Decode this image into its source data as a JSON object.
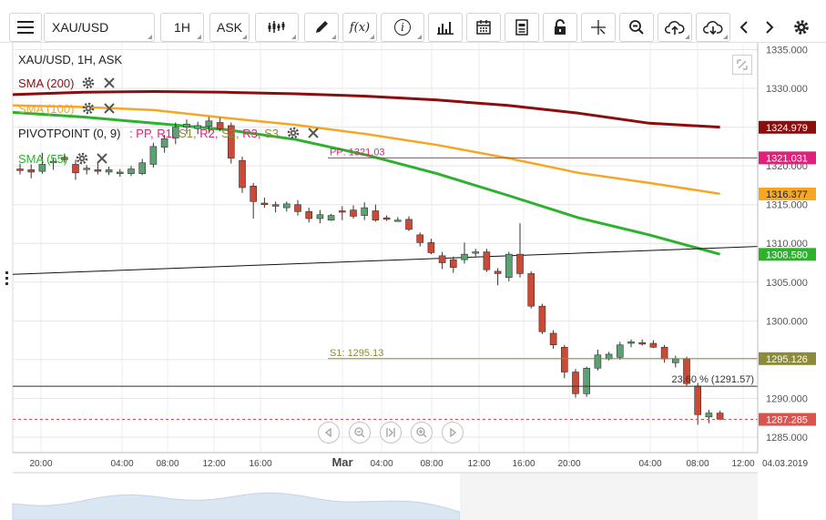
{
  "toolbar": {
    "symbol": "XAU/USD",
    "timeframe": "1H",
    "price_type": "ASK",
    "fx_label": "f(x)",
    "info_label": "i"
  },
  "legend": {
    "title": "XAU/USD, 1H, ASK",
    "sma200": "SMA (200)",
    "sma100": "SMA (100)",
    "pivot": "PIVOTPOINT (0, 9)",
    "pivot_tags": [
      ": PP,",
      "R1,",
      "S1,",
      "R2,",
      "S2,",
      "R3,",
      "S3"
    ],
    "sma55": "SMA (55)"
  },
  "colors": {
    "up": "#5aa272",
    "down": "#cc4a35",
    "sma200": "#8b0d0d",
    "sma100": "#f5a623",
    "sma55": "#2db22d",
    "pivot_pp": "#e0207a",
    "pivot_s1": "#8b8b3a",
    "current": "#d9534f",
    "trendline": "#111111",
    "fib": "#333333"
  },
  "annotations": {
    "pp_label": "PP: 1321.03",
    "s1_label": "S1: 1295.13",
    "fib_label": "23.60 % (1291.57)"
  },
  "price_axis_ticks": [
    "1335.000",
    "1330.000",
    "1325.000",
    "1320.000",
    "1315.000",
    "1310.000",
    "1305.000",
    "1300.000",
    "1295.000",
    "1290.000",
    "1285.000"
  ],
  "price_badges": [
    {
      "value": "1324.979",
      "key": "sma200"
    },
    {
      "value": "1321.031",
      "key": "pivot_pp"
    },
    {
      "value": "1316.377",
      "key": "sma100"
    },
    {
      "value": "1308.580",
      "key": "sma55"
    },
    {
      "value": "1295.126",
      "key": "pivot_s1"
    },
    {
      "value": "1287.285",
      "key": "current"
    }
  ],
  "time_axis_ticks": [
    "20:00",
    "04:00",
    "08:00",
    "12:00",
    "16:00",
    "Mar",
    "04:00",
    "08:00",
    "12:00",
    "16:00",
    "20:00",
    "04:00",
    "08:00",
    "12:00",
    "04.03.2019"
  ],
  "chart_data": {
    "type": "candlestick",
    "instrument": "XAU/USD",
    "timeframe": "1H",
    "candles": [
      {
        "o": 1319.6,
        "h": 1320.3,
        "l": 1318.9,
        "c": 1319.4
      },
      {
        "o": 1319.5,
        "h": 1320.2,
        "l": 1318.4,
        "c": 1319.2
      },
      {
        "o": 1319.3,
        "h": 1321.7,
        "l": 1319.0,
        "c": 1320.2
      },
      {
        "o": 1320.4,
        "h": 1321.0,
        "l": 1319.5,
        "c": 1320.6
      },
      {
        "o": 1321.1,
        "h": 1321.6,
        "l": 1320.4,
        "c": 1320.8
      },
      {
        "o": 1320.2,
        "h": 1320.8,
        "l": 1318.2,
        "c": 1319.1
      },
      {
        "o": 1319.6,
        "h": 1320.1,
        "l": 1318.9,
        "c": 1319.7
      },
      {
        "o": 1319.5,
        "h": 1320.4,
        "l": 1318.9,
        "c": 1319.3
      },
      {
        "o": 1319.2,
        "h": 1319.9,
        "l": 1318.8,
        "c": 1319.5
      },
      {
        "o": 1319.0,
        "h": 1319.6,
        "l": 1318.6,
        "c": 1319.2
      },
      {
        "o": 1319.0,
        "h": 1320.0,
        "l": 1318.7,
        "c": 1319.6
      },
      {
        "o": 1319.0,
        "h": 1320.9,
        "l": 1318.8,
        "c": 1320.4
      },
      {
        "o": 1320.2,
        "h": 1323.0,
        "l": 1319.8,
        "c": 1322.5
      },
      {
        "o": 1322.4,
        "h": 1324.0,
        "l": 1321.7,
        "c": 1323.5
      },
      {
        "o": 1323.6,
        "h": 1325.6,
        "l": 1322.8,
        "c": 1325.0
      },
      {
        "o": 1325.0,
        "h": 1326.0,
        "l": 1324.1,
        "c": 1325.4
      },
      {
        "o": 1324.8,
        "h": 1325.7,
        "l": 1324.1,
        "c": 1325.2
      },
      {
        "o": 1325.1,
        "h": 1326.3,
        "l": 1324.2,
        "c": 1325.8
      },
      {
        "o": 1325.6,
        "h": 1326.2,
        "l": 1324.5,
        "c": 1324.8
      },
      {
        "o": 1325.2,
        "h": 1325.6,
        "l": 1320.3,
        "c": 1321.0
      },
      {
        "o": 1320.7,
        "h": 1321.2,
        "l": 1316.5,
        "c": 1317.2
      },
      {
        "o": 1317.4,
        "h": 1317.8,
        "l": 1313.2,
        "c": 1315.4
      },
      {
        "o": 1315.2,
        "h": 1315.9,
        "l": 1314.6,
        "c": 1315.0
      },
      {
        "o": 1315.0,
        "h": 1315.4,
        "l": 1314.0,
        "c": 1314.8
      },
      {
        "o": 1314.6,
        "h": 1315.4,
        "l": 1314.1,
        "c": 1315.1
      },
      {
        "o": 1315.0,
        "h": 1315.6,
        "l": 1313.6,
        "c": 1314.1
      },
      {
        "o": 1314.1,
        "h": 1314.6,
        "l": 1312.7,
        "c": 1313.2
      },
      {
        "o": 1313.2,
        "h": 1314.3,
        "l": 1312.6,
        "c": 1313.7
      },
      {
        "o": 1313.0,
        "h": 1313.8,
        "l": 1312.9,
        "c": 1313.6
      },
      {
        "o": 1314.2,
        "h": 1314.8,
        "l": 1313.0,
        "c": 1314.1
      },
      {
        "o": 1314.3,
        "h": 1314.9,
        "l": 1313.2,
        "c": 1313.5
      },
      {
        "o": 1313.6,
        "h": 1315.3,
        "l": 1313.0,
        "c": 1314.6
      },
      {
        "o": 1314.2,
        "h": 1315.0,
        "l": 1312.8,
        "c": 1313.0
      },
      {
        "o": 1313.3,
        "h": 1313.6,
        "l": 1312.9,
        "c": 1313.1
      },
      {
        "o": 1313.0,
        "h": 1313.4,
        "l": 1312.8,
        "c": 1313.0
      },
      {
        "o": 1313.1,
        "h": 1313.5,
        "l": 1311.6,
        "c": 1311.8
      },
      {
        "o": 1311.1,
        "h": 1311.4,
        "l": 1309.6,
        "c": 1310.1
      },
      {
        "o": 1310.1,
        "h": 1310.6,
        "l": 1308.6,
        "c": 1308.8
      },
      {
        "o": 1308.4,
        "h": 1308.9,
        "l": 1306.7,
        "c": 1307.5
      },
      {
        "o": 1307.9,
        "h": 1308.3,
        "l": 1306.2,
        "c": 1306.9
      },
      {
        "o": 1307.9,
        "h": 1310.1,
        "l": 1307.4,
        "c": 1308.6
      },
      {
        "o": 1308.9,
        "h": 1309.3,
        "l": 1308.3,
        "c": 1308.9
      },
      {
        "o": 1308.9,
        "h": 1309.3,
        "l": 1306.3,
        "c": 1306.6
      },
      {
        "o": 1306.4,
        "h": 1306.8,
        "l": 1304.6,
        "c": 1306.1
      },
      {
        "o": 1305.6,
        "h": 1308.9,
        "l": 1305.1,
        "c": 1308.6
      },
      {
        "o": 1308.6,
        "h": 1312.6,
        "l": 1305.6,
        "c": 1306.1
      },
      {
        "o": 1306.1,
        "h": 1306.4,
        "l": 1301.6,
        "c": 1301.9
      },
      {
        "o": 1301.9,
        "h": 1302.2,
        "l": 1298.3,
        "c": 1298.6
      },
      {
        "o": 1298.4,
        "h": 1298.8,
        "l": 1296.4,
        "c": 1296.9
      },
      {
        "o": 1296.6,
        "h": 1296.9,
        "l": 1292.6,
        "c": 1293.4
      },
      {
        "o": 1293.4,
        "h": 1293.8,
        "l": 1290.1,
        "c": 1290.6
      },
      {
        "o": 1290.6,
        "h": 1294.1,
        "l": 1290.2,
        "c": 1293.9
      },
      {
        "o": 1293.9,
        "h": 1296.3,
        "l": 1293.6,
        "c": 1295.6
      },
      {
        "o": 1295.1,
        "h": 1296.0,
        "l": 1294.9,
        "c": 1295.7
      },
      {
        "o": 1295.3,
        "h": 1297.3,
        "l": 1295.0,
        "c": 1296.9
      },
      {
        "o": 1297.1,
        "h": 1297.6,
        "l": 1296.6,
        "c": 1297.3
      },
      {
        "o": 1297.2,
        "h": 1297.6,
        "l": 1296.8,
        "c": 1297.0
      },
      {
        "o": 1297.1,
        "h": 1297.5,
        "l": 1296.5,
        "c": 1296.6
      },
      {
        "o": 1296.6,
        "h": 1296.9,
        "l": 1294.6,
        "c": 1295.1
      },
      {
        "o": 1294.6,
        "h": 1295.5,
        "l": 1294.0,
        "c": 1295.1
      },
      {
        "o": 1295.1,
        "h": 1295.4,
        "l": 1291.6,
        "c": 1291.9
      },
      {
        "o": 1291.6,
        "h": 1292.0,
        "l": 1286.6,
        "c": 1287.9
      },
      {
        "o": 1287.6,
        "h": 1288.5,
        "l": 1286.8,
        "c": 1288.1
      },
      {
        "o": 1288.1,
        "h": 1288.4,
        "l": 1287.2,
        "c": 1287.3
      }
    ],
    "sma200": [
      1329.2,
      1329.5,
      1329.6,
      1329.5,
      1329.3,
      1329.0,
      1328.5,
      1327.8,
      1326.8,
      1325.5,
      1325.0
    ],
    "sma100": [
      1327.8,
      1327.6,
      1327.2,
      1326.2,
      1325.3,
      1324.1,
      1322.7,
      1321.0,
      1319.1,
      1317.8,
      1316.4
    ],
    "sma55": [
      1326.9,
      1326.3,
      1325.5,
      1324.7,
      1323.4,
      1321.4,
      1319.0,
      1316.2,
      1313.3,
      1311.1,
      1308.6
    ],
    "pivot_pp": 1321.03,
    "pivot_s1": 1295.13,
    "fib_23_6": 1291.57,
    "current_price": 1287.285,
    "ylim": [
      1283.0,
      1336.0
    ]
  }
}
